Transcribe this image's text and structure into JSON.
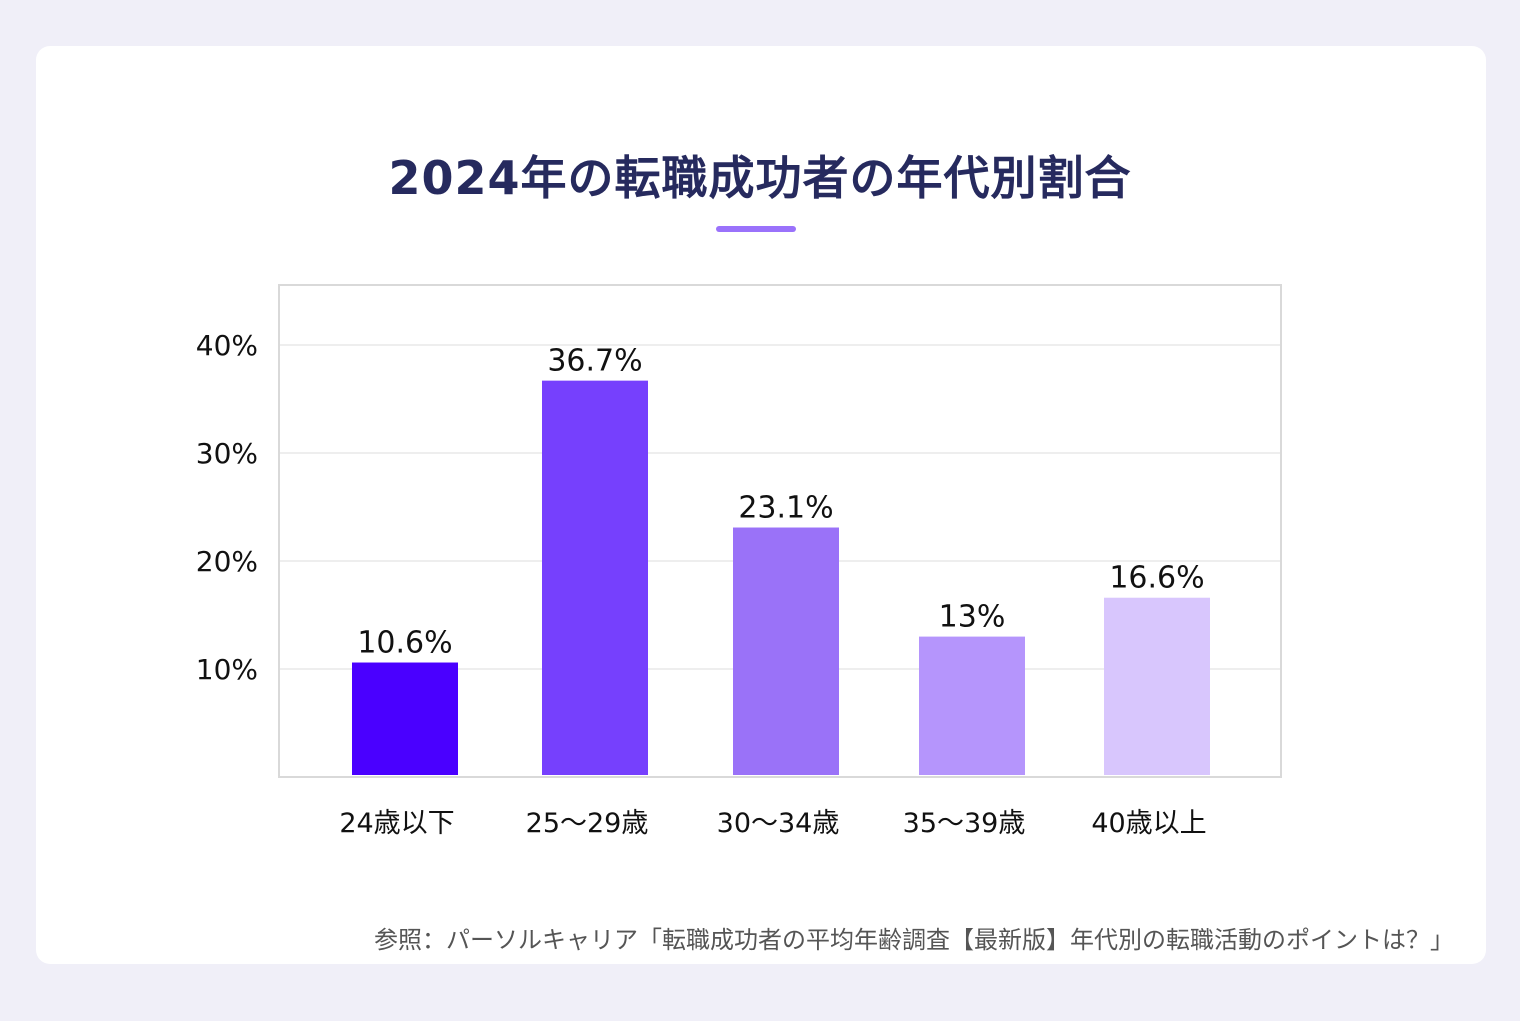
{
  "chart_data": {
    "type": "bar",
    "title": "2024年の転職成功者の年代別割合",
    "categories": [
      "24歳以下",
      "25〜29歳",
      "30〜34歳",
      "35〜39歳",
      "40歳以上"
    ],
    "values": [
      10.6,
      36.7,
      23.1,
      13,
      16.6
    ],
    "value_labels": [
      "10.6%",
      "36.7%",
      "23.1%",
      "13%",
      "16.6%"
    ],
    "y_ticks": [
      10,
      20,
      30,
      40
    ],
    "y_tick_labels": [
      "10%",
      "20%",
      "30%",
      "40%"
    ],
    "ylim": [
      0,
      45
    ],
    "grid": true,
    "colors": {
      "bars": [
        "#4a00ff",
        "#7640fd",
        "#9a72f8",
        "#b595fc",
        "#d8c6fd"
      ],
      "title": "#262a5e",
      "accent": "#9a72fb"
    }
  },
  "source": "参照：パーソルキャリア「転職成功者の平均年齢調査【最新版】年代別の転職活動のポイントは？」"
}
